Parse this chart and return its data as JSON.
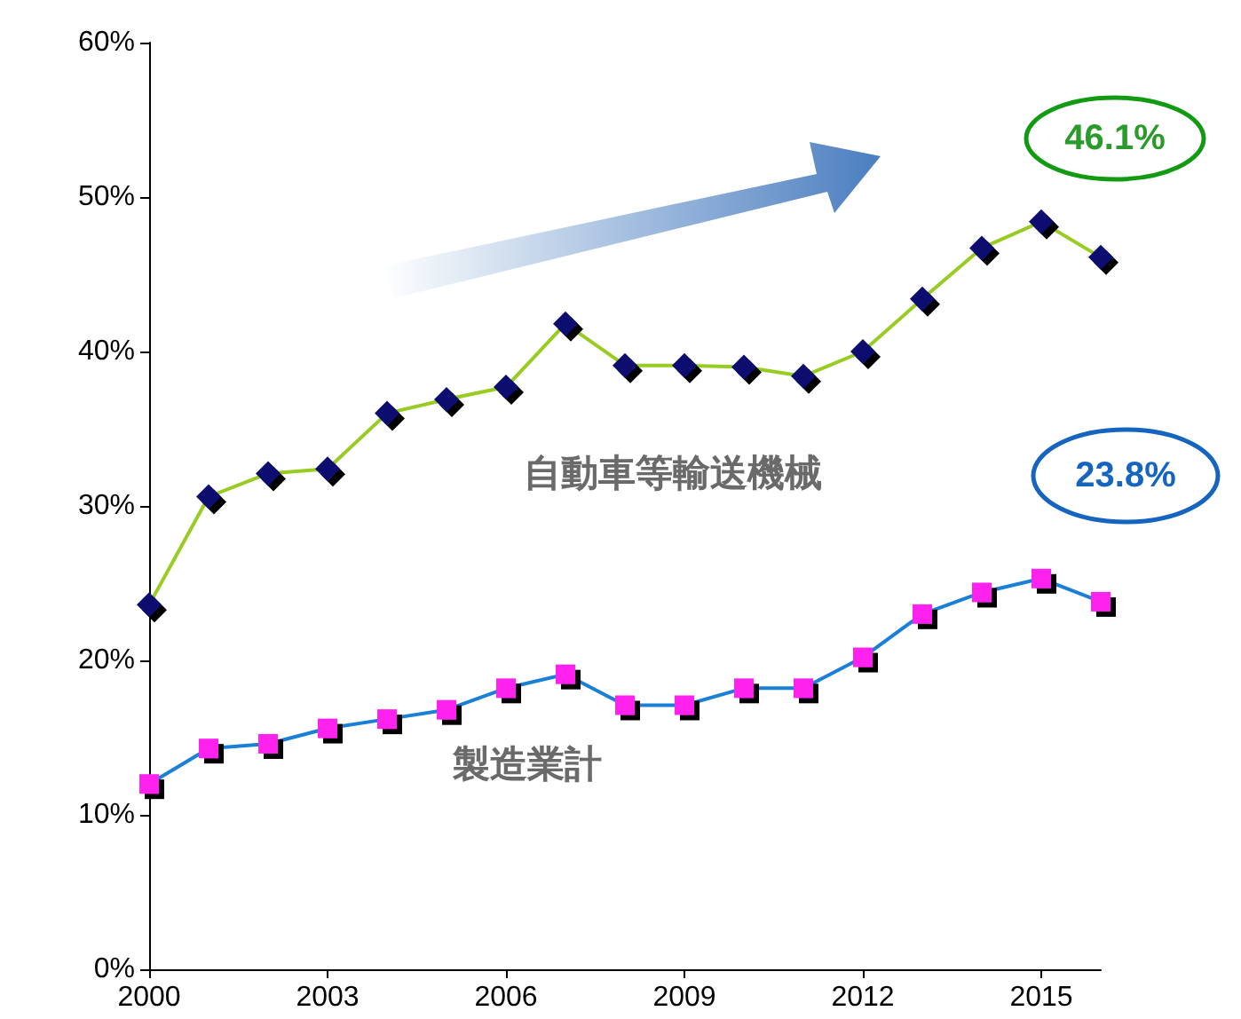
{
  "chart_data": {
    "type": "line",
    "x": [
      2000,
      2001,
      2002,
      2003,
      2004,
      2005,
      2006,
      2007,
      2008,
      2009,
      2010,
      2011,
      2012,
      2013,
      2014,
      2015,
      2016
    ],
    "series": [
      {
        "name": "自動車等輸送機械",
        "color": "#99cc22",
        "marker": "diamond",
        "values": [
          23.6,
          30.6,
          32.1,
          32.4,
          36.0,
          36.9,
          37.7,
          41.8,
          39.1,
          39.1,
          39.0,
          38.4,
          40.0,
          43.4,
          46.7,
          48.4,
          46.1
        ]
      },
      {
        "name": "製造業計",
        "color": "#1a7fd6",
        "marker": "square",
        "values": [
          12.0,
          14.3,
          14.6,
          15.6,
          16.2,
          16.8,
          18.2,
          19.1,
          17.1,
          17.1,
          18.2,
          18.2,
          20.2,
          23.0,
          24.4,
          25.3,
          23.8
        ]
      }
    ],
    "xlim": [
      2000,
      2016
    ],
    "xticks": [
      2000,
      2003,
      2006,
      2009,
      2012,
      2015
    ],
    "ylim": [
      0,
      60
    ],
    "yticks": [
      {
        "value": 0,
        "label": "0%"
      },
      {
        "value": 10,
        "label": "10%"
      },
      {
        "value": 20,
        "label": "20%"
      },
      {
        "value": 30,
        "label": "30%"
      },
      {
        "value": 40,
        "label": "40%"
      },
      {
        "value": 50,
        "label": "50%"
      },
      {
        "value": 60,
        "label": "60%"
      }
    ],
    "annotations": [
      "46.1%",
      "23.8%"
    ],
    "grid": false,
    "legend": false
  }
}
